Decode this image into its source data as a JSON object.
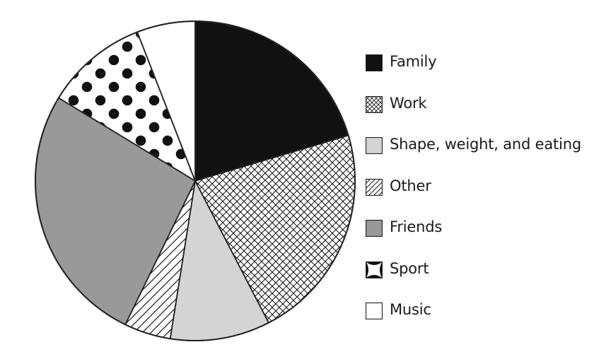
{
  "chart_data": {
    "type": "pie",
    "title": "",
    "start_angle_deg": 0,
    "direction": "clockwise",
    "slices": [
      {
        "label": "Family",
        "value": 20.4,
        "pattern": "solid-black",
        "color": "#111111"
      },
      {
        "label": "Work",
        "value": 22.0,
        "pattern": "crosshatch",
        "color": "#ffffff"
      },
      {
        "label": "Shape, weight, and eating",
        "value": 10.1,
        "pattern": "solid-light-gray",
        "color": "#d4d4d4"
      },
      {
        "label": "Other",
        "value": 4.7,
        "pattern": "diagonal-hatch",
        "color": "#ffffff"
      },
      {
        "label": "Friends",
        "value": 26.5,
        "pattern": "solid-gray",
        "color": "#999999"
      },
      {
        "label": "Sport",
        "value": 10.4,
        "pattern": "polka-dots",
        "color": "#ffffff"
      },
      {
        "label": "Music",
        "value": 5.9,
        "pattern": "solid-white",
        "color": "#ffffff"
      }
    ],
    "legend": {
      "placement": "right",
      "entries": [
        "Family",
        "Work",
        "Shape, weight, and eating",
        "Other",
        "Friends",
        "Sport",
        "Music"
      ]
    }
  }
}
